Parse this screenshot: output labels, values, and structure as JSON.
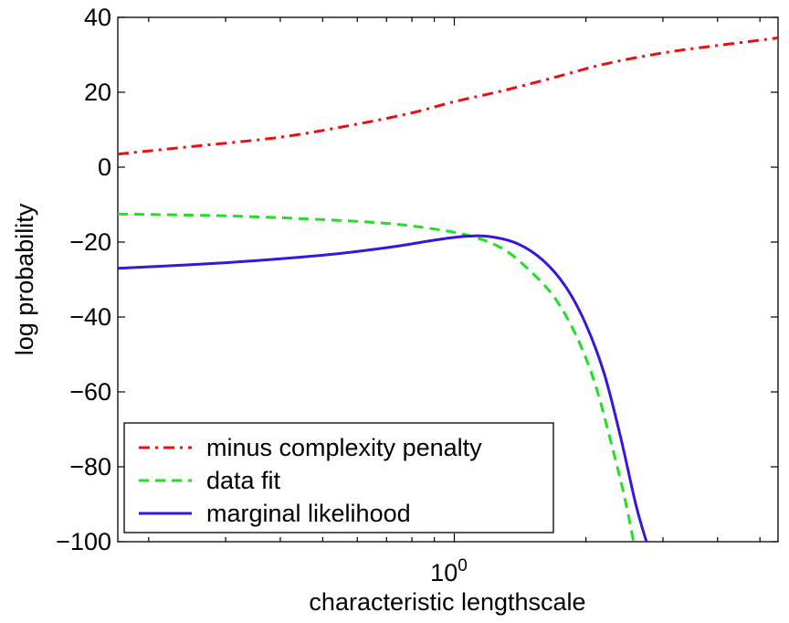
{
  "chart_data": {
    "type": "line",
    "xlabel": "characteristic lengthscale",
    "ylabel": "log probability",
    "x_scale": "log",
    "xlim": [
      0.17,
      5.5
    ],
    "ylim": [
      -100,
      40
    ],
    "x_ticks": [
      {
        "value": 1,
        "base": "10",
        "exponent": "0"
      }
    ],
    "y_ticks": [
      {
        "value": 40,
        "label": "40"
      },
      {
        "value": 20,
        "label": "20"
      },
      {
        "value": 0,
        "label": "0"
      },
      {
        "value": -20,
        "label": "−20"
      },
      {
        "value": -40,
        "label": "−40"
      },
      {
        "value": -60,
        "label": "−60"
      },
      {
        "value": -80,
        "label": "−80"
      },
      {
        "value": -100,
        "label": "−100"
      }
    ],
    "grid": false,
    "legend_position": "bottom-left",
    "series": [
      {
        "name": "minus complexity penalty",
        "color": "#e8110f",
        "style": "dashdot",
        "x": [
          0.17,
          0.25,
          0.4,
          0.6,
          0.8,
          1.0,
          1.3,
          1.7,
          2.2,
          3.0,
          4.0,
          5.5
        ],
        "y": [
          3.5,
          5.5,
          8,
          11.5,
          14.5,
          17.5,
          20.5,
          24,
          27.5,
          30.5,
          32.5,
          34.5
        ]
      },
      {
        "name": "data fit",
        "color": "#20e024",
        "style": "dashed",
        "x": [
          0.17,
          0.3,
          0.5,
          0.7,
          0.9,
          1.1,
          1.3,
          1.5,
          1.7,
          1.9,
          2.1,
          2.3,
          2.45,
          2.57
        ],
        "y": [
          -12.5,
          -13,
          -14,
          -15,
          -16.5,
          -18.5,
          -22,
          -28,
          -35,
          -45,
          -58,
          -75,
          -88,
          -100
        ]
      },
      {
        "name": "marginal likelihood",
        "color": "#3a14e0",
        "style": "solid",
        "x": [
          0.17,
          0.3,
          0.5,
          0.7,
          0.9,
          1.05,
          1.2,
          1.4,
          1.6,
          1.8,
          2.0,
          2.2,
          2.4,
          2.6,
          2.75
        ],
        "y": [
          -27,
          -25.5,
          -23.5,
          -21.5,
          -19.5,
          -18.5,
          -18.5,
          -20.5,
          -25,
          -32,
          -42,
          -55,
          -72,
          -90,
          -100
        ]
      }
    ]
  }
}
